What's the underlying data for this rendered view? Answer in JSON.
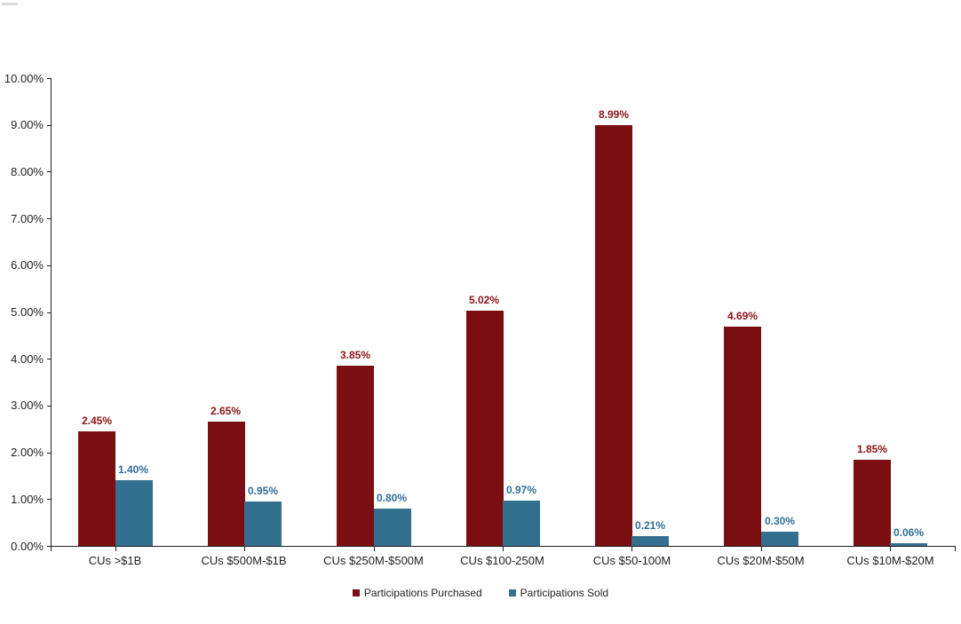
{
  "chart_data": {
    "type": "bar",
    "categories": [
      "CUs >$1B",
      "CUs $500M-$1B",
      "CUs $250M-$500M",
      "CUs $100-250M",
      "CUs $50-100M",
      "CUs $20M-$50M",
      "CUs $10M-$20M"
    ],
    "series": [
      {
        "name": "Participations Purchased",
        "color": "#7B0E10",
        "label_color": "#8B1417",
        "values": [
          2.45,
          2.65,
          3.85,
          5.02,
          8.99,
          4.69,
          1.85
        ],
        "labels": [
          "2.45%",
          "2.65%",
          "3.85%",
          "5.02%",
          "8.99%",
          "4.69%",
          "1.85%"
        ]
      },
      {
        "name": "Participations Sold",
        "color": "#336F8E",
        "label_color": "#2E6F99",
        "values": [
          1.4,
          0.95,
          0.8,
          0.97,
          0.21,
          0.3,
          0.06
        ],
        "labels": [
          "1.40%",
          "0.95%",
          "0.80%",
          "0.97%",
          "0.21%",
          "0.30%",
          "0.06%"
        ]
      }
    ],
    "ylim": [
      0,
      10
    ],
    "ytick_step": 1,
    "ytick_labels": [
      "0.00%",
      "1.00%",
      "2.00%",
      "3.00%",
      "4.00%",
      "5.00%",
      "6.00%",
      "7.00%",
      "8.00%",
      "9.00%",
      "10.00%"
    ],
    "xlabel": "",
    "ylabel": "",
    "grid": false,
    "legend_position": "bottom",
    "axis_color": "#1f1f1f"
  }
}
